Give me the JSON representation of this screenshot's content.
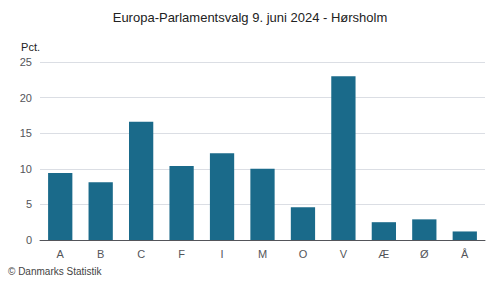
{
  "chart_data": {
    "type": "bar",
    "title": "Europa-Parlamentsvalg 9. juni 2024 - Hørsholm",
    "ylabel": "Pct.",
    "footer": "© Danmarks Statistik",
    "categories": [
      "A",
      "B",
      "C",
      "F",
      "I",
      "M",
      "O",
      "V",
      "Æ",
      "Ø",
      "Å"
    ],
    "values": [
      9.4,
      8.1,
      16.6,
      10.4,
      12.2,
      10.0,
      4.6,
      23.0,
      2.5,
      2.9,
      1.2
    ],
    "color": "#1a6a8a",
    "ylim": [
      0,
      25
    ],
    "yticks": [
      0,
      5,
      10,
      15,
      20,
      25
    ],
    "grid": true
  }
}
